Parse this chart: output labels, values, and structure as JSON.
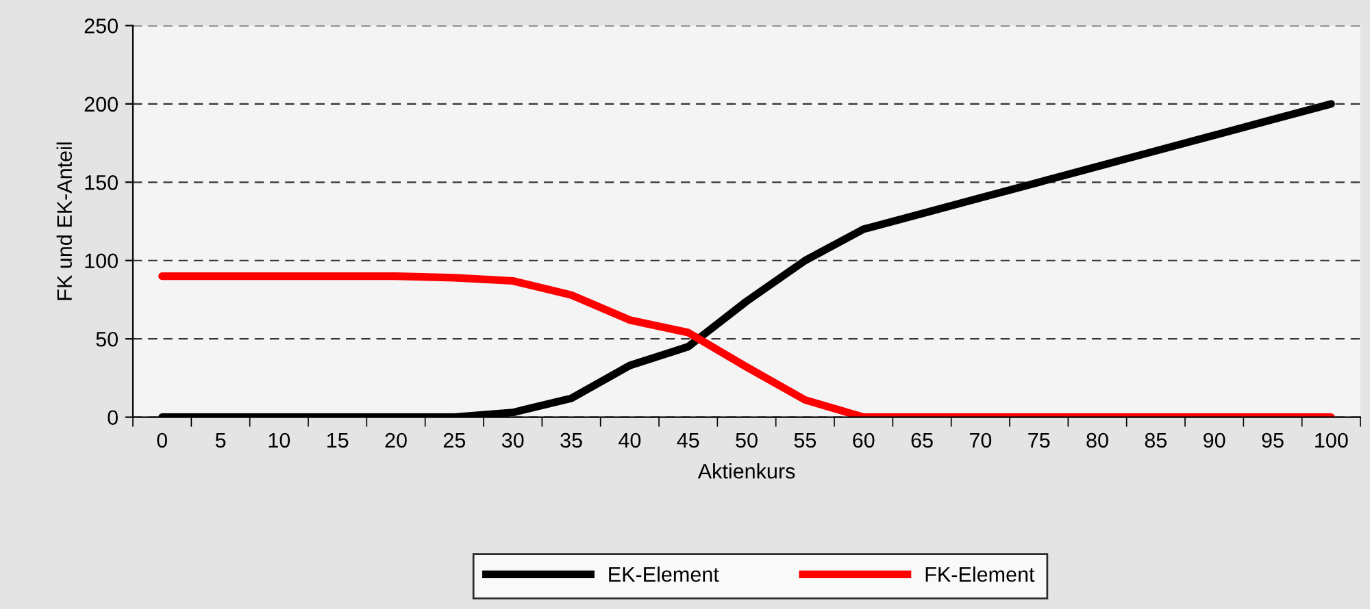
{
  "chart_data": {
    "type": "line",
    "xlabel": "Aktienkurs",
    "ylabel": "FK und EK-Anteil",
    "categories": [
      "0",
      "5",
      "10",
      "15",
      "20",
      "25",
      "30",
      "35",
      "40",
      "45",
      "50",
      "55",
      "60",
      "65",
      "70",
      "75",
      "80",
      "85",
      "90",
      "95",
      "100"
    ],
    "series": [
      {
        "name": "EK-Element",
        "color": "#000000",
        "values": [
          0,
          0,
          0,
          0,
          0,
          0,
          3,
          12,
          33,
          45,
          74,
          100,
          120,
          130,
          140,
          150,
          160,
          170,
          180,
          190,
          200
        ]
      },
      {
        "name": "FK-Element",
        "color": "#ff0000",
        "values": [
          90,
          90,
          90,
          90,
          90,
          89,
          87,
          78,
          62,
          54,
          32,
          11,
          0,
          0,
          0,
          0,
          0,
          0,
          0,
          0,
          0
        ]
      }
    ],
    "ylim": [
      0,
      250
    ],
    "yticks": [
      0,
      50,
      100,
      150,
      200,
      250
    ],
    "grid": "y",
    "legend": "bottom",
    "marker": "none",
    "line_style": "solid"
  }
}
